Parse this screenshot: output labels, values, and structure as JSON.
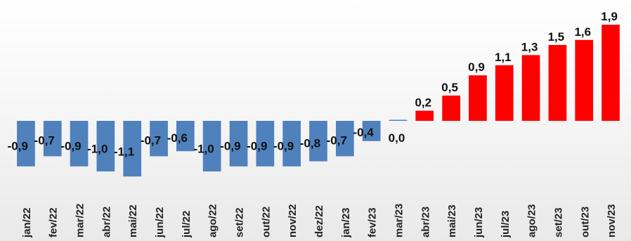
{
  "chart_data": {
    "type": "bar",
    "categories": [
      "jan/22",
      "fev/22",
      "mar/22",
      "abr/22",
      "mai/22",
      "jun/22",
      "jul/22",
      "ago/22",
      "set/22",
      "out/22",
      "nov/22",
      "dez/22",
      "jan/23",
      "fev/23",
      "mar/23",
      "abr/23",
      "mai/23",
      "jun/23",
      "jul/23",
      "ago/23",
      "set/23",
      "out/23",
      "nov/23"
    ],
    "values": [
      -0.9,
      -0.7,
      -0.9,
      -1.0,
      -1.1,
      -0.7,
      -0.6,
      -1.0,
      -0.9,
      -0.9,
      -0.9,
      -0.8,
      -0.7,
      -0.4,
      0.0,
      0.2,
      0.5,
      0.9,
      1.1,
      1.3,
      1.5,
      1.6,
      1.9
    ],
    "labels": [
      "-0,9",
      "-0,7",
      "-0,9",
      "-1,0",
      "-1,1",
      "-0,7",
      "-0,6",
      "-1,0",
      "-0,9",
      "-0,9",
      "-0,9",
      "-0,8",
      "-0,7",
      "-0,4",
      "0,0",
      "0,2",
      "0,5",
      "0,9",
      "1,1",
      "1,3",
      "1,5",
      "1,6",
      "1,9"
    ],
    "negative_color": "#4f81bd",
    "positive_color": "#ff0000",
    "title": "",
    "xlabel": "",
    "ylabel": "",
    "grid": false,
    "legend": "none"
  }
}
